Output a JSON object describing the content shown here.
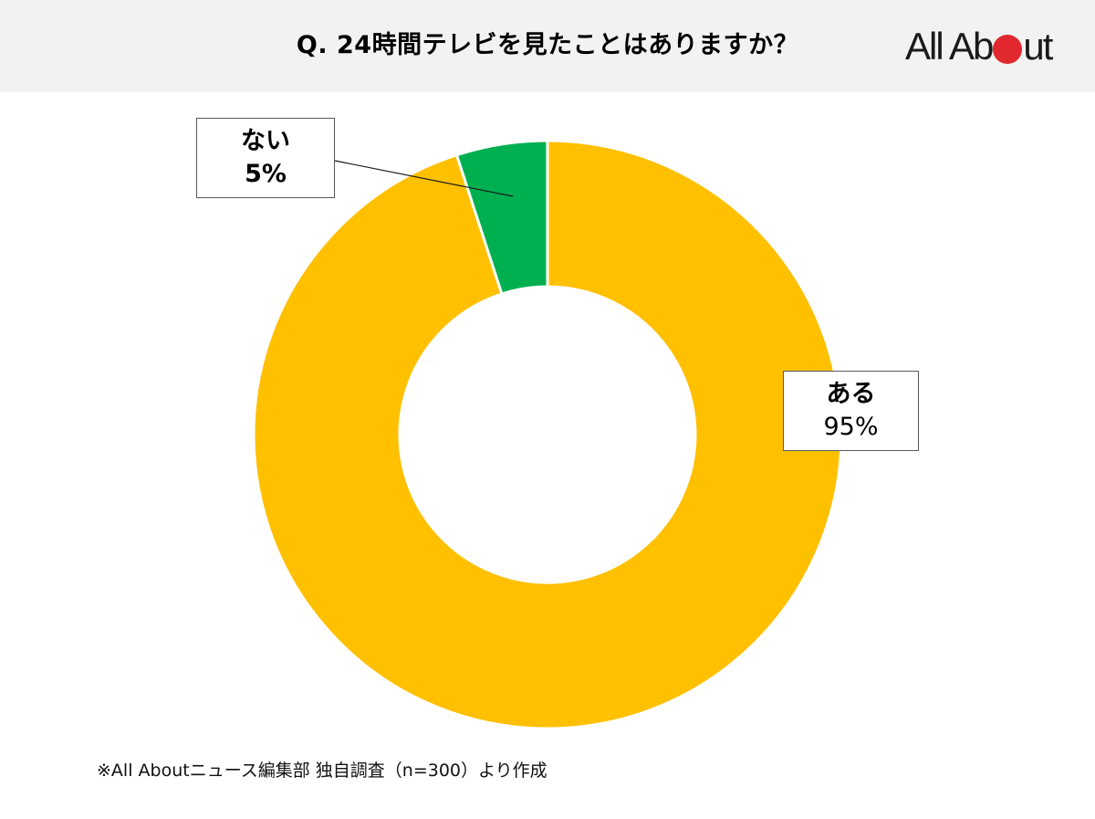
{
  "header": {
    "title": "Q. 24時間テレビを見たことはありますか？",
    "logo": {
      "text_before": "All Ab",
      "text_after": "ut",
      "dot_color": "#E0282E"
    }
  },
  "labels": {
    "nai": {
      "name": "ない",
      "value": "5%"
    },
    "aru": {
      "name": "ある",
      "value": "95%"
    }
  },
  "footnote": "※All Aboutニュース編集部 独自調査（n=300）より作成",
  "colors": {
    "aru": "#FFC000",
    "nai": "#00B050",
    "header_bg": "#F2F2F2"
  },
  "chart_data": {
    "type": "pie",
    "subtype": "donut",
    "title": "Q. 24時間テレビを見たことはありますか？",
    "categories": [
      "ない",
      "ある"
    ],
    "values": [
      5,
      95
    ],
    "unit": "%",
    "colors": [
      "#00B050",
      "#FFC000"
    ],
    "start_angle_deg": 0,
    "direction": "counterclockwise-from-top for ない; remainder ある",
    "data_labels": [
      "ない 5%",
      "ある 95%"
    ],
    "legend": "none (callout labels)",
    "note": "※All Aboutニュース編集部 独自調査（n=300）より作成",
    "sample_size": 300
  }
}
